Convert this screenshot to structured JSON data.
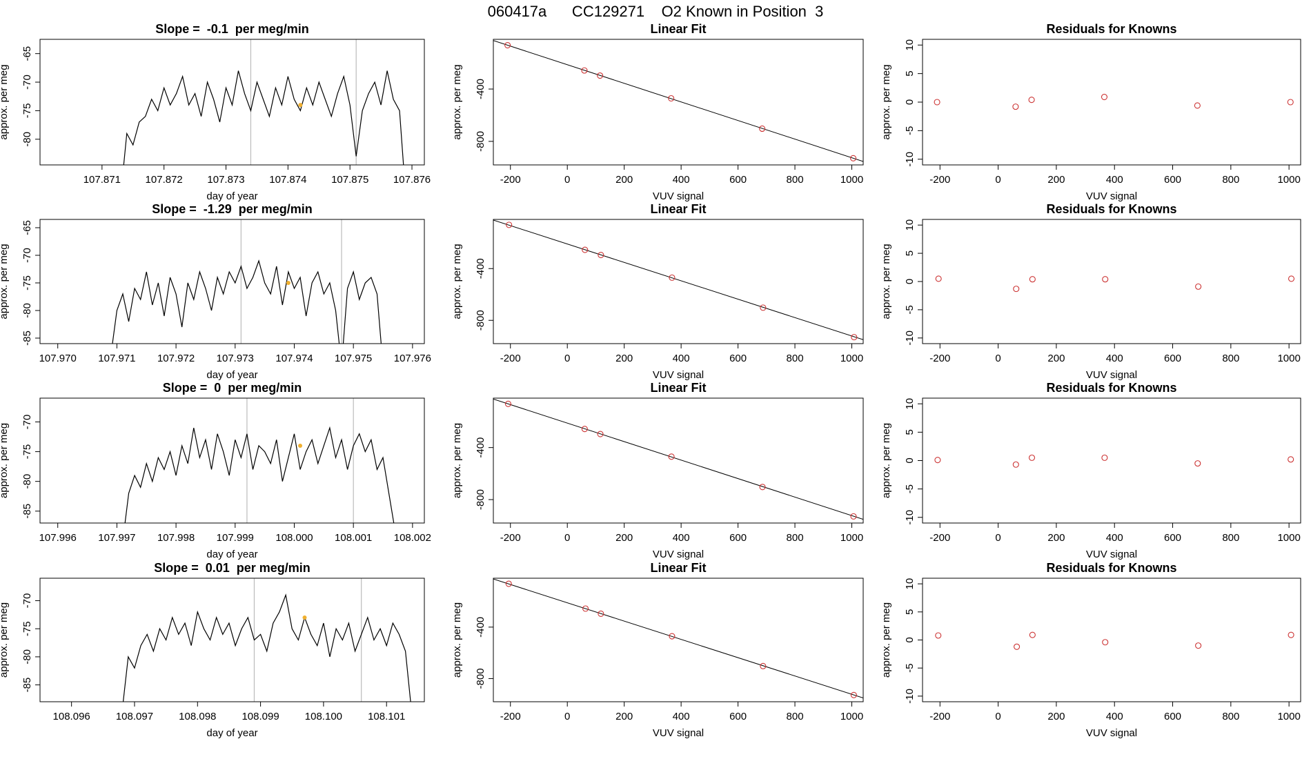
{
  "title": "060417a      CC129271    O2 Known in Position  3",
  "chart_data": [
    {
      "type": "line",
      "title": "Slope =  -0.1  per meg/min",
      "xlabel": "day of year",
      "ylabel": "approx. per meg",
      "x": [
        107.8713,
        107.8714,
        107.8715,
        107.8716,
        107.8717,
        107.8718,
        107.8719,
        107.872,
        107.8721,
        107.8722,
        107.8723,
        107.8724,
        107.8725,
        107.8726,
        107.8727,
        107.8728,
        107.8729,
        107.873,
        107.8731,
        107.8732,
        107.8733,
        107.8734,
        107.8735,
        107.8736,
        107.8737,
        107.8738,
        107.8739,
        107.874,
        107.8741,
        107.8742,
        107.8743,
        107.8744,
        107.8745,
        107.8746,
        107.8747,
        107.8748,
        107.8749,
        107.875,
        107.8751,
        107.8752,
        107.8753,
        107.8754,
        107.8755,
        107.8756,
        107.8757,
        107.8758,
        107.8759
      ],
      "values": [
        -90,
        -79,
        -81,
        -77,
        -76,
        -73,
        -75,
        -71,
        -74,
        -72,
        -69,
        -74,
        -72,
        -76,
        -70,
        -73,
        -77,
        -71,
        -74,
        -68,
        -72,
        -75,
        -70,
        -73,
        -76,
        -71,
        -74,
        -69,
        -73,
        -75,
        -71,
        -74,
        -70,
        -73,
        -76,
        -72,
        -69,
        -74,
        -83,
        -75,
        -72,
        -70,
        -74,
        -68,
        -73,
        -75,
        -90
      ],
      "color": "#000000",
      "xlim": [
        107.87,
        107.8762
      ],
      "ylim": [
        -84.5,
        -62.5
      ],
      "xticks": [
        107.871,
        107.872,
        107.873,
        107.874,
        107.875,
        107.876
      ],
      "yticks": [
        -65,
        -70,
        -75,
        -80
      ],
      "vlines": [
        107.8734,
        107.8751
      ],
      "vline_color": "#bbbbbb",
      "marker": {
        "x": 107.8742,
        "y": -74,
        "color": "#f0b030"
      }
    },
    {
      "type": "scatter",
      "title": "Linear Fit",
      "xlabel": "VUV signal",
      "ylabel": "approx. per meg",
      "x": [
        -210,
        60,
        115,
        365,
        685,
        1005
      ],
      "values": [
        -65,
        -258,
        -297,
        -471,
        -703,
        -929
      ],
      "color": "#cc3333",
      "fit": {
        "slope": -0.711,
        "intercept": -214,
        "color": "#000000"
      },
      "xlim": [
        -260,
        1040
      ],
      "ylim": [
        -980,
        -20
      ],
      "xticks": [
        -200,
        0,
        200,
        400,
        600,
        800,
        1000
      ],
      "yticks": [
        -400,
        -800
      ]
    },
    {
      "type": "scatter",
      "title": "Residuals for Knowns",
      "xlabel": "VUV signal",
      "ylabel": "approx. per meg",
      "x": [
        -210,
        60,
        115,
        365,
        685,
        1005
      ],
      "values": [
        0,
        -0.8,
        0.4,
        0.9,
        -0.6,
        0
      ],
      "color": "#cc3333",
      "xlim": [
        -260,
        1040
      ],
      "ylim": [
        -11,
        11
      ],
      "xticks": [
        -200,
        0,
        200,
        400,
        600,
        800,
        1000
      ],
      "yticks": [
        -10,
        -5,
        0,
        5,
        10
      ]
    },
    {
      "type": "line",
      "title": "Slope =  -1.29  per meg/min",
      "xlabel": "day of year",
      "ylabel": "approx. per meg",
      "x": [
        107.9709,
        107.971,
        107.9711,
        107.9712,
        107.9713,
        107.9714,
        107.9715,
        107.9716,
        107.9717,
        107.9718,
        107.9719,
        107.972,
        107.9721,
        107.9722,
        107.9723,
        107.9724,
        107.9725,
        107.9726,
        107.9727,
        107.9728,
        107.9729,
        107.973,
        107.9731,
        107.9732,
        107.9733,
        107.9734,
        107.9735,
        107.9736,
        107.9737,
        107.9738,
        107.9739,
        107.974,
        107.9741,
        107.9742,
        107.9743,
        107.9744,
        107.9745,
        107.9746,
        107.9747,
        107.9748,
        107.9749,
        107.975,
        107.9751,
        107.9752,
        107.9753,
        107.9754,
        107.9755
      ],
      "values": [
        -88,
        -80,
        -77,
        -82,
        -76,
        -78,
        -73,
        -79,
        -75,
        -81,
        -74,
        -77,
        -83,
        -75,
        -78,
        -73,
        -76,
        -80,
        -74,
        -77,
        -73,
        -75,
        -72,
        -76,
        -74,
        -71,
        -75,
        -77,
        -72,
        -79,
        -73,
        -76,
        -74,
        -81,
        -75,
        -73,
        -77,
        -75,
        -80,
        -90,
        -76,
        -73,
        -78,
        -75,
        -74,
        -77,
        -90
      ],
      "color": "#000000",
      "xlim": [
        107.9697,
        107.9762
      ],
      "ylim": [
        -86,
        -63.5
      ],
      "xticks": [
        {
          "value": 107.97,
          "label": "107.970"
        },
        107.971,
        107.972,
        107.973,
        107.974,
        107.975,
        107.976
      ],
      "yticks": [
        -65,
        -70,
        -75,
        -80,
        -85
      ],
      "vlines": [
        107.9731,
        107.9748
      ],
      "vline_color": "#bbbbbb",
      "marker": {
        "x": 107.9739,
        "y": -75,
        "color": "#f0b030"
      }
    },
    {
      "type": "scatter",
      "title": "Linear Fit",
      "xlabel": "VUV signal",
      "ylabel": "approx. per meg",
      "x": [
        -205,
        62,
        118,
        368,
        688,
        1008
      ],
      "values": [
        -62,
        -255,
        -295,
        -470,
        -702,
        -930
      ],
      "color": "#cc3333",
      "fit": {
        "slope": -0.711,
        "intercept": -210,
        "color": "#000000"
      },
      "xlim": [
        -260,
        1040
      ],
      "ylim": [
        -980,
        -20
      ],
      "xticks": [
        -200,
        0,
        200,
        400,
        600,
        800,
        1000
      ],
      "yticks": [
        -400,
        -800
      ]
    },
    {
      "type": "scatter",
      "title": "Residuals for Knowns",
      "xlabel": "VUV signal",
      "ylabel": "approx. per meg",
      "x": [
        -205,
        62,
        118,
        368,
        688,
        1008
      ],
      "values": [
        0.5,
        -1.3,
        0.4,
        0.4,
        -0.9,
        0.5
      ],
      "color": "#cc3333",
      "xlim": [
        -260,
        1040
      ],
      "ylim": [
        -11,
        11
      ],
      "xticks": [
        -200,
        0,
        200,
        400,
        600,
        800,
        1000
      ],
      "yticks": [
        -10,
        -5,
        0,
        5,
        10
      ]
    },
    {
      "type": "line",
      "title": "Slope =  0  per meg/min",
      "xlabel": "day of year",
      "ylabel": "approx. per meg",
      "x": [
        107.9971,
        107.9972,
        107.9973,
        107.9974,
        107.9975,
        107.9976,
        107.9977,
        107.9978,
        107.9979,
        107.998,
        107.9981,
        107.9982,
        107.9983,
        107.9984,
        107.9985,
        107.9986,
        107.9987,
        107.9988,
        107.9989,
        107.999,
        107.9991,
        107.9992,
        107.9993,
        107.9994,
        107.9995,
        107.9996,
        107.9997,
        107.9998,
        107.9999,
        108.0,
        108.0001,
        108.0002,
        108.0003,
        108.0004,
        108.0005,
        108.0006,
        108.0007,
        108.0008,
        108.0009,
        108.001,
        108.0011,
        108.0012,
        108.0013,
        108.0014,
        108.0015,
        108.0016,
        108.0017
      ],
      "values": [
        -90,
        -82,
        -79,
        -81,
        -77,
        -80,
        -76,
        -78,
        -75,
        -79,
        -74,
        -77,
        -71,
        -76,
        -73,
        -78,
        -72,
        -75,
        -79,
        -73,
        -76,
        -72,
        -78,
        -74,
        -75,
        -77,
        -73,
        -80,
        -76,
        -72,
        -78,
        -75,
        -73,
        -77,
        -74,
        -71,
        -76,
        -73,
        -78,
        -74,
        -72,
        -75,
        -73,
        -78,
        -76,
        -82,
        -88
      ],
      "color": "#000000",
      "xlim": [
        107.9957,
        108.0022
      ],
      "ylim": [
        -87,
        -66
      ],
      "xticks": [
        107.996,
        107.997,
        107.998,
        107.999,
        {
          "value": 108,
          "label": "108.000"
        },
        108.001,
        108.002
      ],
      "yticks": [
        -70,
        -75,
        -80,
        -85
      ],
      "vlines": [
        107.9992,
        108.001
      ],
      "vline_color": "#bbbbbb",
      "marker": {
        "x": 108.0001,
        "y": -74,
        "color": "#f0b030"
      }
    },
    {
      "type": "scatter",
      "title": "Linear Fit",
      "xlabel": "VUV signal",
      "ylabel": "approx. per meg",
      "x": [
        -208,
        61,
        116,
        366,
        686,
        1006
      ],
      "values": [
        -64,
        -257,
        -296,
        -470,
        -703,
        -929
      ],
      "color": "#cc3333",
      "fit": {
        "slope": -0.711,
        "intercept": -212,
        "color": "#000000"
      },
      "xlim": [
        -260,
        1040
      ],
      "ylim": [
        -980,
        -20
      ],
      "xticks": [
        -200,
        0,
        200,
        400,
        600,
        800,
        1000
      ],
      "yticks": [
        -400,
        -800
      ]
    },
    {
      "type": "scatter",
      "title": "Residuals for Knowns",
      "xlabel": "VUV signal",
      "ylabel": "approx. per meg",
      "x": [
        -208,
        61,
        116,
        366,
        686,
        1006
      ],
      "values": [
        0.1,
        -0.7,
        0.5,
        0.5,
        -0.5,
        0.2
      ],
      "color": "#cc3333",
      "xlim": [
        -260,
        1040
      ],
      "ylim": [
        -11,
        11
      ],
      "xticks": [
        -200,
        0,
        200,
        400,
        600,
        800,
        1000
      ],
      "yticks": [
        -10,
        -5,
        0,
        5,
        10
      ]
    },
    {
      "type": "line",
      "title": "Slope =  0.01  per meg/min",
      "xlabel": "day of year",
      "ylabel": "approx. per meg",
      "x": [
        108.0968,
        108.0969,
        108.097,
        108.0971,
        108.0972,
        108.0973,
        108.0974,
        108.0975,
        108.0976,
        108.0977,
        108.0978,
        108.0979,
        108.098,
        108.0981,
        108.0982,
        108.0983,
        108.0984,
        108.0985,
        108.0986,
        108.0987,
        108.0988,
        108.0989,
        108.099,
        108.0991,
        108.0992,
        108.0993,
        108.0994,
        108.0995,
        108.0996,
        108.0997,
        108.0998,
        108.0999,
        108.1,
        108.1001,
        108.1002,
        108.1003,
        108.1004,
        108.1005,
        108.1006,
        108.1007,
        108.1008,
        108.1009,
        108.101,
        108.1011,
        108.1012,
        108.1013,
        108.1014
      ],
      "values": [
        -90,
        -80,
        -82,
        -78,
        -76,
        -79,
        -75,
        -77,
        -73,
        -76,
        -74,
        -78,
        -72,
        -75,
        -77,
        -73,
        -76,
        -74,
        -78,
        -75,
        -73,
        -77,
        -76,
        -79,
        -74,
        -72,
        -69,
        -75,
        -77,
        -73,
        -76,
        -78,
        -74,
        -80,
        -75,
        -77,
        -74,
        -79,
        -76,
        -73,
        -77,
        -75,
        -78,
        -74,
        -76,
        -79,
        -90
      ],
      "color": "#000000",
      "xlim": [
        108.0955,
        108.1016
      ],
      "ylim": [
        -88,
        -66
      ],
      "xticks": [
        108.096,
        108.097,
        108.098,
        108.099,
        {
          "value": 108.1,
          "label": "108.100"
        },
        108.101
      ],
      "yticks": [
        -70,
        -75,
        -80,
        -85
      ],
      "vlines": [
        108.0989,
        108.1006
      ],
      "vline_color": "#bbbbbb",
      "marker": {
        "x": 108.0997,
        "y": -73,
        "color": "#f0b030"
      }
    },
    {
      "type": "scatter",
      "title": "Linear Fit",
      "xlabel": "VUV signal",
      "ylabel": "approx. per meg",
      "x": [
        -206,
        64,
        118,
        368,
        688,
        1007
      ],
      "values": [
        -63,
        -256,
        -296,
        -471,
        -703,
        -928
      ],
      "color": "#cc3333",
      "fit": {
        "slope": -0.711,
        "intercept": -211,
        "color": "#000000"
      },
      "xlim": [
        -260,
        1040
      ],
      "ylim": [
        -980,
        -20
      ],
      "xticks": [
        -200,
        0,
        200,
        400,
        600,
        800,
        1000
      ],
      "yticks": [
        -400,
        -800
      ]
    },
    {
      "type": "scatter",
      "title": "Residuals for Knowns",
      "xlabel": "VUV signal",
      "ylabel": "approx. per meg",
      "x": [
        -206,
        64,
        118,
        368,
        688,
        1007
      ],
      "values": [
        0.8,
        -1.2,
        0.9,
        -0.4,
        -1.0,
        0.9
      ],
      "color": "#cc3333",
      "xlim": [
        -260,
        1040
      ],
      "ylim": [
        -11,
        11
      ],
      "xticks": [
        -200,
        0,
        200,
        400,
        600,
        800,
        1000
      ],
      "yticks": [
        -10,
        -5,
        0,
        5,
        10
      ]
    }
  ]
}
